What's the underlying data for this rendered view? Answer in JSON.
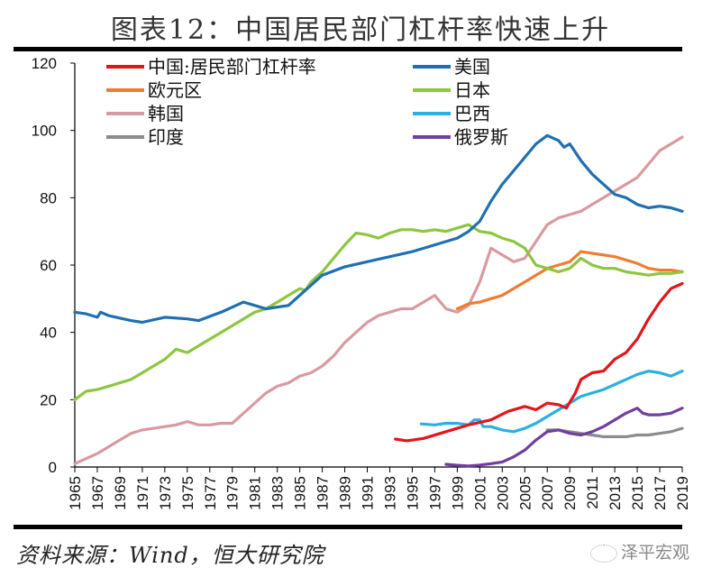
{
  "chart_data": {
    "type": "line",
    "title": "图表12：中国居民部门杠杆率快速上升",
    "xlabel": "",
    "ylabel": "",
    "xlim": [
      1965,
      2019
    ],
    "ylim": [
      0,
      120
    ],
    "y_ticks": [
      0,
      20,
      40,
      60,
      80,
      100,
      120
    ],
    "x_ticks": [
      "1965",
      "1967",
      "1969",
      "1971",
      "1973",
      "1975",
      "1977",
      "1979",
      "1981",
      "1983",
      "1985",
      "1987",
      "1989",
      "1991",
      "1993",
      "1995",
      "1997",
      "1999",
      "2001",
      "2003",
      "2005",
      "2007",
      "2009",
      "2011",
      "2013",
      "2015",
      "2017",
      "2019"
    ],
    "grid": false,
    "legend_position": "top",
    "series": [
      {
        "name": "中国:居民部门杠杆率",
        "color": "#e3151b",
        "points": [
          [
            1993.5,
            8.3
          ],
          [
            1994.5,
            7.8
          ],
          [
            1996,
            8.5
          ],
          [
            1998,
            10.5
          ],
          [
            2000,
            12.5
          ],
          [
            2002,
            14
          ],
          [
            2003.5,
            16.5
          ],
          [
            2005,
            18
          ],
          [
            2006,
            17
          ],
          [
            2007,
            19
          ],
          [
            2008,
            18.5
          ],
          [
            2008.7,
            17.5
          ],
          [
            2009.5,
            22
          ],
          [
            2010,
            26
          ],
          [
            2011,
            28
          ],
          [
            2012,
            28.5
          ],
          [
            2013,
            32
          ],
          [
            2014,
            34
          ],
          [
            2015,
            38
          ],
          [
            2016,
            44
          ],
          [
            2017,
            49
          ],
          [
            2018,
            53
          ],
          [
            2019,
            54.5
          ]
        ]
      },
      {
        "name": "美国",
        "color": "#1f6fb2",
        "points": [
          [
            1965,
            46
          ],
          [
            1966,
            45.5
          ],
          [
            1967,
            44.5
          ],
          [
            1967.3,
            46
          ],
          [
            1968,
            45
          ],
          [
            1970,
            43.5
          ],
          [
            1971,
            43
          ],
          [
            1973,
            44.5
          ],
          [
            1975,
            44
          ],
          [
            1976,
            43.5
          ],
          [
            1978,
            46
          ],
          [
            1980,
            49
          ],
          [
            1981,
            48
          ],
          [
            1982,
            47
          ],
          [
            1984,
            48
          ],
          [
            1985,
            51
          ],
          [
            1986,
            54
          ],
          [
            1987,
            57
          ],
          [
            1989,
            59.5
          ],
          [
            1991,
            61
          ],
          [
            1993,
            62.5
          ],
          [
            1995,
            64
          ],
          [
            1997,
            66
          ],
          [
            1999,
            68
          ],
          [
            2000,
            70
          ],
          [
            2001,
            73
          ],
          [
            2002,
            79
          ],
          [
            2003,
            84
          ],
          [
            2004,
            88
          ],
          [
            2005,
            92
          ],
          [
            2006,
            96
          ],
          [
            2007,
            98.5
          ],
          [
            2008,
            97
          ],
          [
            2008.5,
            95
          ],
          [
            2009,
            96
          ],
          [
            2010,
            91
          ],
          [
            2011,
            87
          ],
          [
            2012,
            84
          ],
          [
            2013,
            81
          ],
          [
            2014,
            80
          ],
          [
            2015,
            78
          ],
          [
            2016,
            77
          ],
          [
            2017,
            77.5
          ],
          [
            2018,
            77
          ],
          [
            2019,
            76
          ]
        ]
      },
      {
        "name": "欧元区",
        "color": "#ed7d31",
        "points": [
          [
            1999,
            47
          ],
          [
            2000,
            48.5
          ],
          [
            2001,
            49
          ],
          [
            2002,
            50
          ],
          [
            2003,
            51
          ],
          [
            2004,
            53
          ],
          [
            2005,
            55
          ],
          [
            2006,
            57
          ],
          [
            2007,
            59
          ],
          [
            2008,
            60
          ],
          [
            2009,
            61
          ],
          [
            2010,
            64
          ],
          [
            2011,
            63.5
          ],
          [
            2012,
            63
          ],
          [
            2013,
            62.5
          ],
          [
            2014,
            61.5
          ],
          [
            2015,
            60.5
          ],
          [
            2016,
            59
          ],
          [
            2017,
            58.5
          ],
          [
            2018,
            58.5
          ],
          [
            2019,
            58
          ]
        ]
      },
      {
        "name": "日本",
        "color": "#8dc63f",
        "points": [
          [
            1965,
            20
          ],
          [
            1966,
            22.5
          ],
          [
            1967,
            23
          ],
          [
            1969,
            25
          ],
          [
            1970,
            26
          ],
          [
            1971,
            28
          ],
          [
            1972,
            30
          ],
          [
            1973,
            32
          ],
          [
            1974,
            35
          ],
          [
            1975,
            34
          ],
          [
            1976,
            36
          ],
          [
            1977,
            38
          ],
          [
            1978,
            40
          ],
          [
            1979,
            42
          ],
          [
            1980,
            44
          ],
          [
            1981,
            46
          ],
          [
            1982,
            47
          ],
          [
            1983,
            49
          ],
          [
            1984,
            51
          ],
          [
            1985,
            53
          ],
          [
            1985.5,
            52.5
          ],
          [
            1986,
            55
          ],
          [
            1987,
            58
          ],
          [
            1988,
            62
          ],
          [
            1989,
            66
          ],
          [
            1990,
            69.5
          ],
          [
            1991,
            69
          ],
          [
            1992,
            68
          ],
          [
            1993,
            69.5
          ],
          [
            1994,
            70.5
          ],
          [
            1995,
            70.5
          ],
          [
            1996,
            70
          ],
          [
            1997,
            70.5
          ],
          [
            1998,
            70
          ],
          [
            1999,
            71
          ],
          [
            2000,
            72
          ],
          [
            2001,
            70
          ],
          [
            2002,
            69.5
          ],
          [
            2003,
            68
          ],
          [
            2004,
            67
          ],
          [
            2005,
            65
          ],
          [
            2006,
            60
          ],
          [
            2007,
            59
          ],
          [
            2008,
            58
          ],
          [
            2009,
            59
          ],
          [
            2010,
            62
          ],
          [
            2011,
            60
          ],
          [
            2012,
            59
          ],
          [
            2013,
            59
          ],
          [
            2014,
            58
          ],
          [
            2015,
            57.5
          ],
          [
            2016,
            57
          ],
          [
            2017,
            57.5
          ],
          [
            2018,
            57.5
          ],
          [
            2019,
            58
          ]
        ]
      },
      {
        "name": "韩国",
        "color": "#d89aa0",
        "points": [
          [
            1965,
            1
          ],
          [
            1966,
            2.5
          ],
          [
            1967,
            4
          ],
          [
            1968,
            6
          ],
          [
            1969,
            8
          ],
          [
            1970,
            10
          ],
          [
            1971,
            11
          ],
          [
            1972,
            11.5
          ],
          [
            1973,
            12
          ],
          [
            1974,
            12.5
          ],
          [
            1975,
            13.5
          ],
          [
            1976,
            12.5
          ],
          [
            1977,
            12.5
          ],
          [
            1978,
            13
          ],
          [
            1979,
            13
          ],
          [
            1980,
            16
          ],
          [
            1981,
            19
          ],
          [
            1982,
            22
          ],
          [
            1983,
            24
          ],
          [
            1984,
            25
          ],
          [
            1985,
            27
          ],
          [
            1986,
            28
          ],
          [
            1987,
            30
          ],
          [
            1988,
            33
          ],
          [
            1989,
            37
          ],
          [
            1990,
            40
          ],
          [
            1991,
            43
          ],
          [
            1992,
            45
          ],
          [
            1993,
            46
          ],
          [
            1994,
            47
          ],
          [
            1995,
            47
          ],
          [
            1996,
            49
          ],
          [
            1997,
            51
          ],
          [
            1998,
            47
          ],
          [
            1999,
            46
          ],
          [
            2000,
            48
          ],
          [
            2001,
            55
          ],
          [
            2002,
            65
          ],
          [
            2003,
            63
          ],
          [
            2004,
            61
          ],
          [
            2005,
            62
          ],
          [
            2006,
            67
          ],
          [
            2007,
            72
          ],
          [
            2008,
            74
          ],
          [
            2009,
            75
          ],
          [
            2010,
            76
          ],
          [
            2011,
            78
          ],
          [
            2012,
            80
          ],
          [
            2013,
            82
          ],
          [
            2014,
            84
          ],
          [
            2015,
            86
          ],
          [
            2016,
            90
          ],
          [
            2017,
            94
          ],
          [
            2018,
            96
          ],
          [
            2019,
            98
          ]
        ]
      },
      {
        "name": "巴西",
        "color": "#2ab0e0",
        "points": [
          [
            1995.8,
            12.8
          ],
          [
            1997,
            12.5
          ],
          [
            1998,
            13
          ],
          [
            1999,
            13
          ],
          [
            2000,
            12.5
          ],
          [
            2000.5,
            14
          ],
          [
            2001,
            14
          ],
          [
            2001.3,
            12
          ],
          [
            2002,
            12
          ],
          [
            2003,
            11
          ],
          [
            2004,
            10.5
          ],
          [
            2005,
            11.5
          ],
          [
            2006,
            13
          ],
          [
            2007,
            15
          ],
          [
            2008,
            17
          ],
          [
            2009,
            19
          ],
          [
            2010,
            21
          ],
          [
            2011,
            22
          ],
          [
            2012,
            23
          ],
          [
            2013,
            24.5
          ],
          [
            2014,
            26
          ],
          [
            2015,
            27.5
          ],
          [
            2016,
            28.5
          ],
          [
            2017,
            28
          ],
          [
            2018,
            27
          ],
          [
            2019,
            28.5
          ]
        ]
      },
      {
        "name": "印度",
        "color": "#8c8c8c",
        "points": [
          [
            2007,
            11
          ],
          [
            2008,
            11
          ],
          [
            2009,
            10.5
          ],
          [
            2010,
            10
          ],
          [
            2011,
            9.5
          ],
          [
            2012,
            9
          ],
          [
            2013,
            9
          ],
          [
            2014,
            9
          ],
          [
            2015,
            9.5
          ],
          [
            2016,
            9.5
          ],
          [
            2017,
            10
          ],
          [
            2018,
            10.5
          ],
          [
            2019,
            11.5
          ]
        ]
      },
      {
        "name": "俄罗斯",
        "color": "#6f3fa0",
        "points": [
          [
            1998,
            0.8
          ],
          [
            1999,
            0.5
          ],
          [
            2000,
            0.3
          ],
          [
            2001,
            0.6
          ],
          [
            2002,
            1
          ],
          [
            2003,
            1.5
          ],
          [
            2004,
            3
          ],
          [
            2005,
            5
          ],
          [
            2006,
            8
          ],
          [
            2007,
            10.5
          ],
          [
            2008,
            11
          ],
          [
            2009,
            10
          ],
          [
            2010,
            9.5
          ],
          [
            2011,
            10.5
          ],
          [
            2012,
            12
          ],
          [
            2013,
            14
          ],
          [
            2014,
            16
          ],
          [
            2015,
            17.5
          ],
          [
            2015.5,
            16
          ],
          [
            2016,
            15.5
          ],
          [
            2017,
            15.5
          ],
          [
            2018,
            16
          ],
          [
            2019,
            17.5
          ]
        ]
      }
    ]
  },
  "footer": {
    "source": "资料来源：Wind，恒大研究院",
    "watermark": "泽平宏观"
  }
}
